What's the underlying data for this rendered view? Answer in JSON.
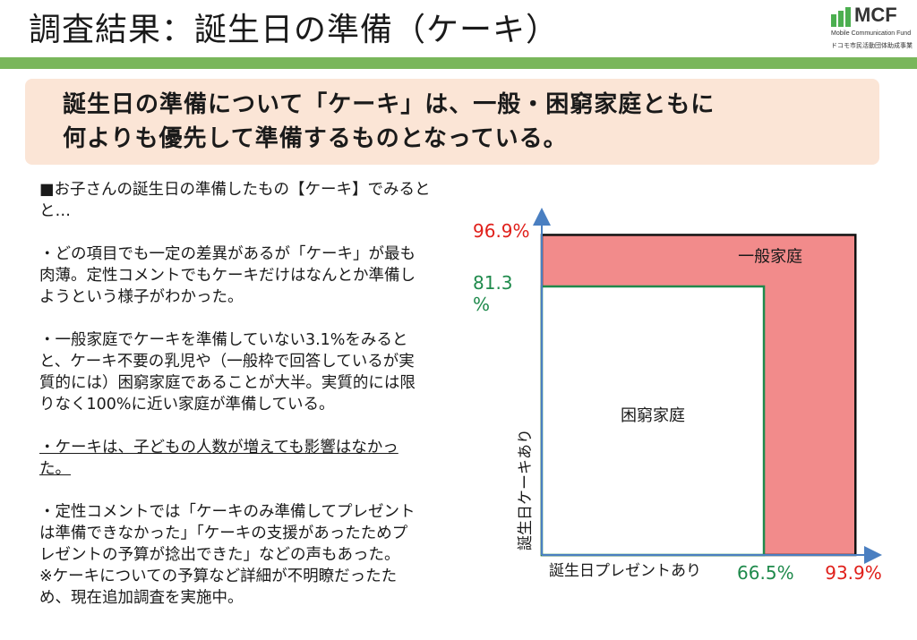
{
  "header": {
    "title": "調査結果：誕生日の準備（ケーキ）",
    "logo_word": "MCF",
    "logo_sub": "Mobile Communication Fund",
    "logo_sub2": "ドコモ市民活動団体助成事業"
  },
  "banner": {
    "line1": "誕生日の準備について「ケーキ」は、一般・困窮家庭ともに",
    "line2": "何よりも優先して準備するものとなっている。"
  },
  "body": {
    "intro_1": "■お子さんの誕生日の準備したもの【ケーキ】でみると",
    "intro_2": "と…",
    "p1_1": "・どの項目でも一定の差異があるが「ケーキ」が最も",
    "p1_2": "肉薄。定性コメントでもケーキだけはなんとか準備し",
    "p1_3": "ようという様子がわかった。",
    "p2_1": "・一般家庭でケーキを準備していない3.1%をみると",
    "p2_2": "と、ケーキ不要の乳児や（一般枠で回答しているが実",
    "p2_3": "質的には）困窮家庭であることが大半。実質的には限",
    "p2_4": "りなく100%に近い家庭が準備している。",
    "p3_1": "・ケーキは、子どもの人数が増えても影響はなかっ",
    "p3_2": "た。",
    "p4_1": "・定性コメントでは「ケーキのみ準備してプレゼント",
    "p4_2": "は準備できなかった」「ケーキの支援があったためプ",
    "p4_3": "レゼントの予算が捻出できた」などの声もあった。",
    "p4_4": "※ケーキについての予算など詳細が不明瞭だったた",
    "p4_5": "め、現在追加調査を実施中。"
  },
  "chart_data": {
    "type": "area",
    "xlabel": "誕生日プレゼントあり",
    "ylabel": "誕生日ケーキあり",
    "series": [
      {
        "name": "一般家庭",
        "x": 93.9,
        "y": 96.9,
        "x_label": "93.9%",
        "y_label": "96.9%",
        "color": "#f28b8b"
      },
      {
        "name": "困窮家庭",
        "x": 66.5,
        "y": 81.3,
        "x_label": "66.5%",
        "y_label_1": "81.3",
        "y_label_2": "%",
        "color": "#1f8a4c"
      }
    ],
    "axis_color": "#4a7fc1",
    "red_text_color": "#e0201b",
    "green_text_color": "#1f8a4c"
  }
}
